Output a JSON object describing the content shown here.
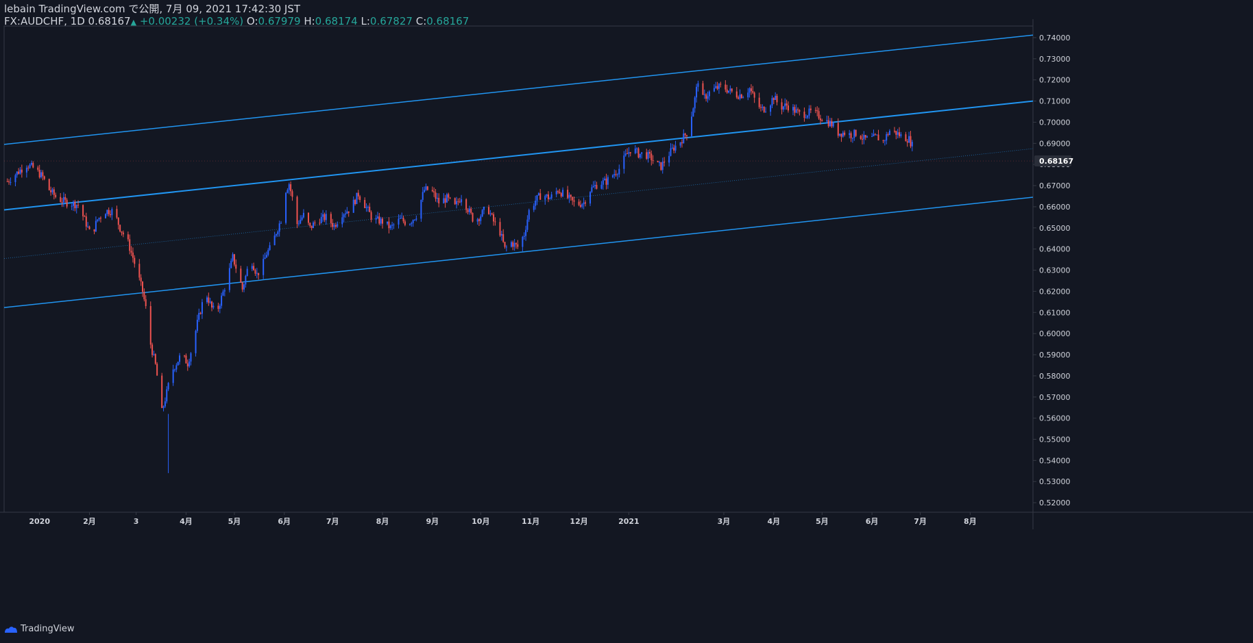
{
  "header": {
    "line1": "lebain TradingView.com で公開, 7月 09, 2021 17:42:30 JST",
    "symbol": "FX:AUDCHF, 1D",
    "last": "0.68167",
    "change": "+0.00232 (+0.34%)",
    "o_label": "O:",
    "o_value": "0.67979",
    "h_label": "H:",
    "h_value": "0.68174",
    "l_label": "L:",
    "l_value": "0.67827",
    "c_label": "C:",
    "c_value": "0.68167"
  },
  "footer": {
    "brand": "TradingView"
  },
  "colors": {
    "background": "#131722",
    "up": "#2962ff",
    "down": "#ef5350",
    "channel": "#2196f3",
    "grid": "#363a45",
    "text": "#d1d4dc",
    "price_tag_bg": "#2a2e39"
  },
  "chart_data": {
    "type": "candlestick",
    "symbol": "FX:AUDCHF",
    "interval": "1D",
    "y_ticks": [
      "0.74000",
      "0.73000",
      "0.72000",
      "0.71000",
      "0.70000",
      "0.69000",
      "0.68000",
      "0.67000",
      "0.66000",
      "0.65000",
      "0.64000",
      "0.63000",
      "0.62000",
      "0.61000",
      "0.60000",
      "0.59000",
      "0.58000",
      "0.57000",
      "0.56000",
      "0.55000",
      "0.54000",
      "0.53000",
      "0.52000"
    ],
    "ylim": [
      0.5155,
      0.7455
    ],
    "x_ticks": [
      {
        "label": "2020",
        "d": 0
      },
      {
        "label": "2月",
        "d": 31
      },
      {
        "label": "3",
        "d": 60
      },
      {
        "label": "4月",
        "d": 91
      },
      {
        "label": "5月",
        "d": 121
      },
      {
        "label": "6月",
        "d": 152
      },
      {
        "label": "7月",
        "d": 182
      },
      {
        "label": "8月",
        "d": 213
      },
      {
        "label": "9月",
        "d": 244
      },
      {
        "label": "10月",
        "d": 274
      },
      {
        "label": "11月",
        "d": 305
      },
      {
        "label": "12月",
        "d": 335
      },
      {
        "label": "2021",
        "d": 366
      },
      {
        "label": "3月",
        "d": 425
      },
      {
        "label": "4月",
        "d": 456
      },
      {
        "label": "5月",
        "d": 486
      },
      {
        "label": "6月",
        "d": 517
      },
      {
        "label": "7月",
        "d": 547
      },
      {
        "label": "8月",
        "d": 578
      }
    ],
    "x_unit": "days since 2020-01-01",
    "x_range": [
      -22,
      617
    ],
    "last_price": "0.68167",
    "channel_lines": [
      {
        "name": "upper",
        "p1": [
          -22,
          0.6895
        ],
        "p2": [
          617,
          0.7412
        ]
      },
      {
        "name": "middle",
        "p1": [
          -22,
          0.6585
        ],
        "p2": [
          617,
          0.71
        ]
      },
      {
        "name": "lower",
        "p1": [
          -22,
          0.6123
        ],
        "p2": [
          617,
          0.6645
        ]
      },
      {
        "name": "dotted-mid",
        "p1": [
          -22,
          0.6355
        ],
        "p2": [
          617,
          0.6875
        ]
      }
    ],
    "price_path": [
      [
        -20,
        0.672
      ],
      [
        -14,
        0.676
      ],
      [
        -8,
        0.68
      ],
      [
        -3,
        0.678
      ],
      [
        2,
        0.674
      ],
      [
        6,
        0.668
      ],
      [
        11,
        0.664
      ],
      [
        17,
        0.662
      ],
      [
        24,
        0.661
      ],
      [
        29,
        0.652
      ],
      [
        32,
        0.646
      ],
      [
        36,
        0.654
      ],
      [
        41,
        0.658
      ],
      [
        46,
        0.658
      ],
      [
        50,
        0.65
      ],
      [
        55,
        0.643
      ],
      [
        58,
        0.636
      ],
      [
        61,
        0.628
      ],
      [
        64,
        0.62
      ],
      [
        66,
        0.612
      ],
      [
        69,
        0.595
      ],
      [
        72,
        0.585
      ],
      [
        74,
        0.575
      ],
      [
        76,
        0.563
      ],
      [
        79,
        0.572
      ],
      [
        82,
        0.582
      ],
      [
        85,
        0.586
      ],
      [
        88,
        0.59
      ],
      [
        92,
        0.586
      ],
      [
        95,
        0.594
      ],
      [
        98,
        0.605
      ],
      [
        101,
        0.614
      ],
      [
        104,
        0.618
      ],
      [
        107,
        0.612
      ],
      [
        110,
        0.61
      ],
      [
        113,
        0.617
      ],
      [
        117,
        0.627
      ],
      [
        120,
        0.636
      ],
      [
        123,
        0.629
      ],
      [
        126,
        0.621
      ],
      [
        129,
        0.63
      ],
      [
        132,
        0.634
      ],
      [
        135,
        0.628
      ],
      [
        138,
        0.631
      ],
      [
        141,
        0.638
      ],
      [
        144,
        0.641
      ],
      [
        147,
        0.648
      ],
      [
        150,
        0.654
      ],
      [
        153,
        0.668
      ],
      [
        155,
        0.671
      ],
      [
        157,
        0.664
      ],
      [
        160,
        0.652
      ],
      [
        164,
        0.656
      ],
      [
        168,
        0.65
      ],
      [
        173,
        0.654
      ],
      [
        178,
        0.655
      ],
      [
        183,
        0.651
      ],
      [
        188,
        0.657
      ],
      [
        193,
        0.659
      ],
      [
        198,
        0.666
      ],
      [
        202,
        0.661
      ],
      [
        207,
        0.654
      ],
      [
        213,
        0.653
      ],
      [
        218,
        0.65
      ],
      [
        224,
        0.654
      ],
      [
        229,
        0.652
      ],
      [
        234,
        0.656
      ],
      [
        239,
        0.668
      ],
      [
        243,
        0.668
      ],
      [
        248,
        0.662
      ],
      [
        253,
        0.664
      ],
      [
        258,
        0.66
      ],
      [
        262,
        0.665
      ],
      [
        266,
        0.659
      ],
      [
        270,
        0.653
      ],
      [
        274,
        0.656
      ],
      [
        278,
        0.66
      ],
      [
        282,
        0.653
      ],
      [
        286,
        0.648
      ],
      [
        289,
        0.64
      ],
      [
        293,
        0.643
      ],
      [
        297,
        0.641
      ],
      [
        301,
        0.647
      ],
      [
        304,
        0.658
      ],
      [
        308,
        0.663
      ],
      [
        312,
        0.666
      ],
      [
        317,
        0.664
      ],
      [
        322,
        0.668
      ],
      [
        327,
        0.665
      ],
      [
        333,
        0.661
      ],
      [
        338,
        0.662
      ],
      [
        342,
        0.668
      ],
      [
        347,
        0.671
      ],
      [
        352,
        0.672
      ],
      [
        356,
        0.675
      ],
      [
        360,
        0.678
      ],
      [
        364,
        0.684
      ],
      [
        368,
        0.688
      ],
      [
        372,
        0.685
      ],
      [
        376,
        0.685
      ],
      [
        380,
        0.683
      ],
      [
        383,
        0.68
      ],
      [
        386,
        0.679
      ],
      [
        390,
        0.684
      ],
      [
        394,
        0.688
      ],
      [
        398,
        0.691
      ],
      [
        402,
        0.695
      ],
      [
        404,
        0.7
      ],
      [
        407,
        0.711
      ],
      [
        409,
        0.72
      ],
      [
        412,
        0.711
      ],
      [
        416,
        0.714
      ],
      [
        420,
        0.716
      ],
      [
        424,
        0.717
      ],
      [
        428,
        0.715
      ],
      [
        433,
        0.713
      ],
      [
        437,
        0.713
      ],
      [
        441,
        0.716
      ],
      [
        444,
        0.711
      ],
      [
        448,
        0.706
      ],
      [
        452,
        0.707
      ],
      [
        456,
        0.712
      ],
      [
        460,
        0.707
      ],
      [
        464,
        0.708
      ],
      [
        468,
        0.706
      ],
      [
        472,
        0.704
      ],
      [
        476,
        0.704
      ],
      [
        480,
        0.705
      ],
      [
        484,
        0.703
      ],
      [
        488,
        0.701
      ],
      [
        492,
        0.699
      ],
      [
        496,
        0.695
      ],
      [
        500,
        0.695
      ],
      [
        504,
        0.694
      ],
      [
        508,
        0.695
      ],
      [
        512,
        0.692
      ],
      [
        516,
        0.692
      ],
      [
        520,
        0.693
      ],
      [
        524,
        0.691
      ],
      [
        528,
        0.696
      ],
      [
        532,
        0.695
      ],
      [
        536,
        0.693
      ],
      [
        540,
        0.692
      ],
      [
        542,
        0.689
      ],
      [
        543,
        0.682
      ],
      [
        544,
        0.6817
      ]
    ]
  }
}
